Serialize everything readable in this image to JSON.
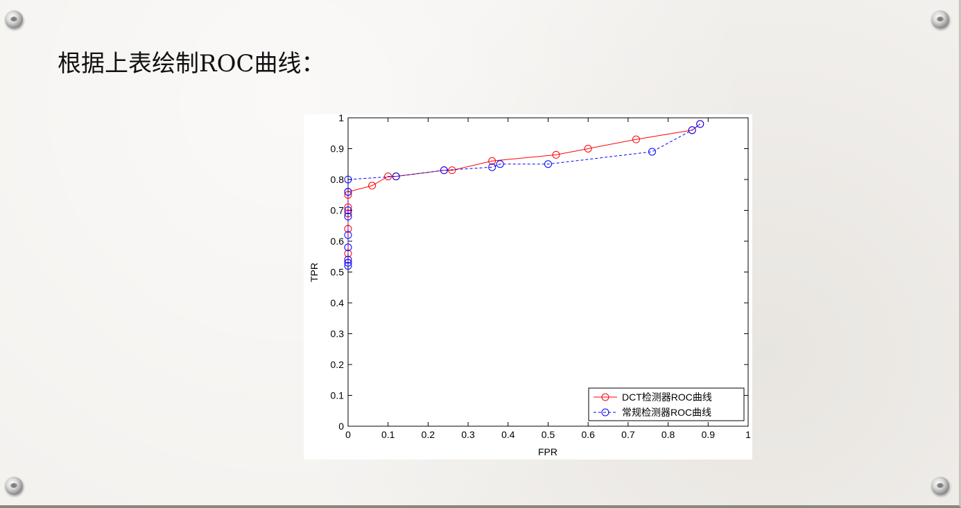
{
  "slide": {
    "title": "根据上表绘制ROC曲线："
  },
  "chart_data": {
    "type": "line",
    "xlabel": "FPR",
    "ylabel": "TPR",
    "xlim": [
      0,
      1
    ],
    "ylim": [
      0,
      1
    ],
    "xticks": [
      "0",
      "0.1",
      "0.2",
      "0.3",
      "0.4",
      "0.5",
      "0.6",
      "0.7",
      "0.8",
      "0.9",
      "1"
    ],
    "yticks": [
      "0",
      "0.1",
      "0.2",
      "0.3",
      "0.4",
      "0.5",
      "0.6",
      "0.7",
      "0.8",
      "0.9",
      "1"
    ],
    "grid": false,
    "legend_position": "bottom-right",
    "series": [
      {
        "name": "DCT检测器ROC曲线",
        "color": "#ff0000",
        "line_style": "solid",
        "marker": "circle",
        "x": [
          0,
          0,
          0,
          0,
          0,
          0,
          0,
          0.06,
          0.1,
          0.12,
          0.24,
          0.26,
          0.36,
          0.52,
          0.6,
          0.72,
          0.86,
          0.88
        ],
        "y": [
          0.53,
          0.56,
          0.64,
          0.69,
          0.71,
          0.75,
          0.76,
          0.78,
          0.81,
          0.81,
          0.83,
          0.83,
          0.86,
          0.88,
          0.9,
          0.93,
          0.96,
          0.98
        ]
      },
      {
        "name": "常规检测器ROC曲线",
        "color": "#0000ff",
        "line_style": "dashed",
        "marker": "circle",
        "x": [
          0,
          0,
          0,
          0,
          0,
          0,
          0,
          0,
          0,
          0.12,
          0.24,
          0.36,
          0.38,
          0.5,
          0.76,
          0.86,
          0.88
        ],
        "y": [
          0.52,
          0.53,
          0.54,
          0.58,
          0.62,
          0.68,
          0.7,
          0.76,
          0.8,
          0.81,
          0.83,
          0.84,
          0.85,
          0.85,
          0.89,
          0.96,
          0.98
        ]
      }
    ]
  }
}
